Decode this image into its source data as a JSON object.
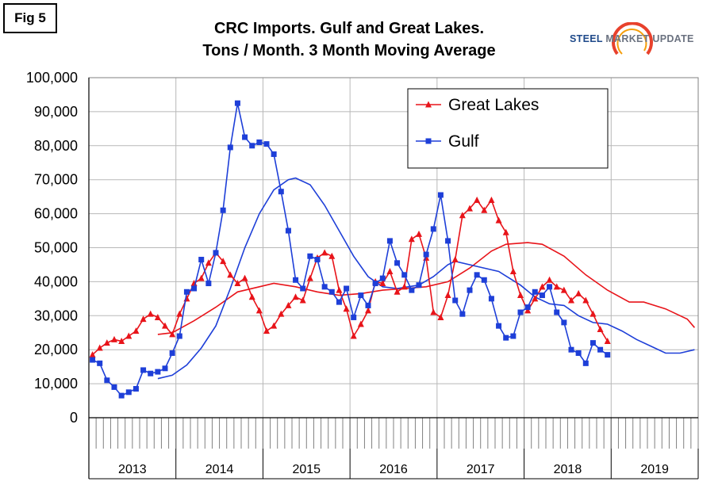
{
  "fig_label": "Fig 5",
  "logo": {
    "steel": "STEEL",
    "rest": " MARKET UPDATE",
    "color_primary": "#1f4a8a",
    "color_arc": "#e8412c"
  },
  "chart_data": {
    "type": "line",
    "title_line1": "CRC Imports. Gulf and Great Lakes.",
    "title_line2": "Tons / Month. 3 Month Moving Average",
    "ylim": [
      0,
      100000
    ],
    "yticks": [
      0,
      10000,
      20000,
      30000,
      40000,
      50000,
      60000,
      70000,
      80000,
      90000,
      100000
    ],
    "ytick_labels": [
      "0",
      "10,000",
      "20,000",
      "30,000",
      "40,000",
      "50,000",
      "60,000",
      "70,000",
      "80,000",
      "90,000",
      "100,000"
    ],
    "years": [
      "2013",
      "2014",
      "2015",
      "2016",
      "2017",
      "2018",
      "2019"
    ],
    "months_total": 84,
    "grid": true,
    "legend_position": "top-right",
    "series": [
      {
        "name": "Great Lakes",
        "color": "#e8141a",
        "marker": "triangle",
        "start_month": 1,
        "values": [
          18500,
          20500,
          22000,
          23000,
          22500,
          24000,
          25500,
          29000,
          30500,
          29500,
          27000,
          24500,
          30500,
          35000,
          39500,
          41000,
          45500,
          48500,
          46000,
          42000,
          39500,
          41000,
          35500,
          31500,
          25500,
          27000,
          30500,
          33000,
          35500,
          34500,
          41000,
          47000,
          48500,
          47500,
          37500,
          32000,
          24000,
          27500,
          31500,
          40000,
          39500,
          43000,
          37000,
          38500,
          52500,
          54000,
          47000,
          31000,
          29500,
          36000,
          46500,
          59500,
          61500,
          64000,
          61000,
          64000,
          58000,
          54500,
          43000,
          36000,
          31500,
          35000,
          38500,
          40500,
          38500,
          37500,
          34500,
          36500,
          34500,
          30500,
          26000,
          22500
        ]
      },
      {
        "name": "Gulf",
        "color": "#1e3fd8",
        "marker": "square",
        "start_month": 1,
        "values": [
          17000,
          16000,
          11000,
          9000,
          6500,
          7500,
          8500,
          14000,
          13000,
          13500,
          14500,
          19000,
          24000,
          37000,
          38000,
          46500,
          39500,
          48500,
          61000,
          79500,
          92500,
          82500,
          80000,
          81000,
          80500,
          77500,
          66500,
          55000,
          40500,
          38000,
          47500,
          46500,
          38500,
          37000,
          34000,
          38000,
          29500,
          36000,
          33000,
          39500,
          41000,
          52000,
          45500,
          42000,
          37500,
          39000,
          48000,
          55500,
          65500,
          52000,
          34500,
          30500,
          37500,
          42000,
          40500,
          35000,
          27000,
          23500,
          24000,
          31000,
          32500,
          37000,
          36000,
          38500,
          31000,
          28000,
          20000,
          19000,
          16000,
          22000,
          20000,
          18500
        ]
      }
    ],
    "trend_lines": [
      {
        "series": "Great Lakes",
        "color": "#e8141a",
        "points": [
          [
            10,
            24500
          ],
          [
            12,
            25000
          ],
          [
            15,
            28500
          ],
          [
            18,
            32500
          ],
          [
            21,
            37000
          ],
          [
            24,
            38500
          ],
          [
            26,
            39500
          ],
          [
            29,
            38500
          ],
          [
            32,
            37000
          ],
          [
            35,
            36000
          ],
          [
            38,
            36500
          ],
          [
            41,
            37500
          ],
          [
            44,
            38000
          ],
          [
            47,
            38500
          ],
          [
            50,
            40000
          ],
          [
            53,
            44000
          ],
          [
            56,
            49000
          ],
          [
            58,
            51000
          ],
          [
            61,
            51500
          ],
          [
            63,
            51000
          ],
          [
            66,
            47500
          ],
          [
            69,
            42000
          ],
          [
            72,
            37500
          ],
          [
            75,
            34000
          ],
          [
            77,
            34000
          ],
          [
            80,
            32000
          ],
          [
            83,
            29000
          ],
          [
            84,
            26500
          ]
        ]
      },
      {
        "series": "Gulf",
        "color": "#1e3fd8",
        "points": [
          [
            10,
            11500
          ],
          [
            12,
            12500
          ],
          [
            14,
            15500
          ],
          [
            16,
            20500
          ],
          [
            18,
            27000
          ],
          [
            20,
            38000
          ],
          [
            22,
            50000
          ],
          [
            24,
            60000
          ],
          [
            26,
            67000
          ],
          [
            28,
            70000
          ],
          [
            29,
            70500
          ],
          [
            31,
            68500
          ],
          [
            33,
            62500
          ],
          [
            35,
            55000
          ],
          [
            37,
            47500
          ],
          [
            39,
            41500
          ],
          [
            41,
            38500
          ],
          [
            43,
            38000
          ],
          [
            46,
            39000
          ],
          [
            48,
            41500
          ],
          [
            50,
            45000
          ],
          [
            51,
            46000
          ],
          [
            54,
            44500
          ],
          [
            57,
            43000
          ],
          [
            60,
            39000
          ],
          [
            62,
            35500
          ],
          [
            64,
            33500
          ],
          [
            66,
            33000
          ],
          [
            68,
            30000
          ],
          [
            70,
            28000
          ],
          [
            72,
            27500
          ],
          [
            74,
            25500
          ],
          [
            76,
            23000
          ],
          [
            78,
            21000
          ],
          [
            80,
            19000
          ],
          [
            82,
            19000
          ],
          [
            84,
            20000
          ]
        ]
      }
    ]
  }
}
